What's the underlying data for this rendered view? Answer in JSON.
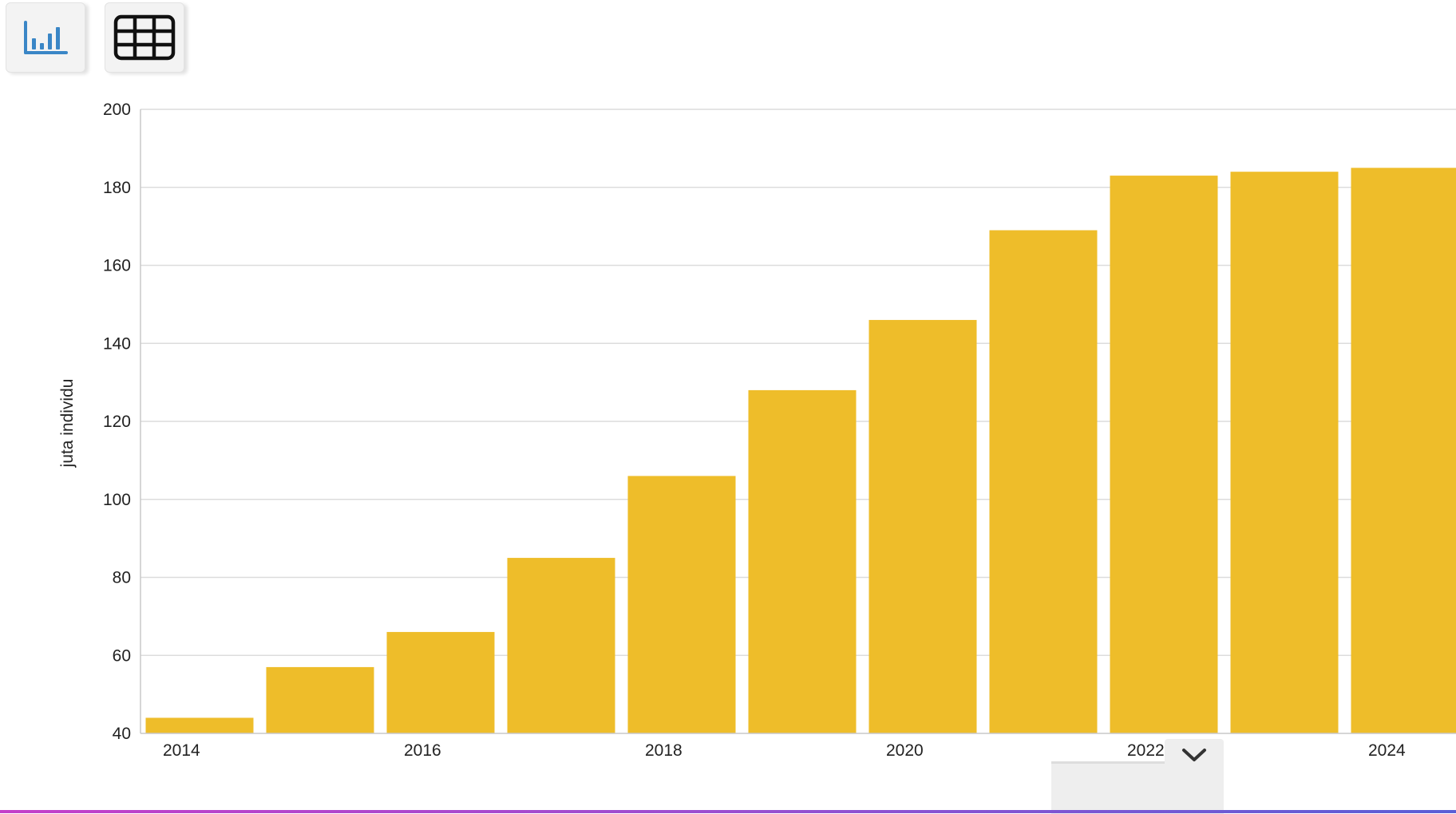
{
  "toolbar": {
    "chart_button_icon": "bar-chart-icon",
    "table_button_icon": "table-grid-icon",
    "active_color": "#3a86c6"
  },
  "scroll_control": {
    "icon": "chevron-down-icon"
  },
  "chart_data": {
    "type": "bar",
    "categories": [
      "2014",
      "2015",
      "2016",
      "2017",
      "2018",
      "2019",
      "2020",
      "2021",
      "2022",
      "2023",
      "2024"
    ],
    "values": [
      44,
      57,
      66,
      85,
      106,
      128,
      146,
      169,
      183,
      184,
      185
    ],
    "bar_color": "#eebd2a",
    "ylabel": "juta individu",
    "ylim": [
      40,
      200
    ],
    "y_ticks": [
      40,
      60,
      80,
      100,
      120,
      140,
      160,
      180,
      200
    ],
    "x_tick_labels": [
      "2014",
      "2016",
      "2018",
      "2020",
      "2022",
      "2024"
    ],
    "grid": true
  }
}
